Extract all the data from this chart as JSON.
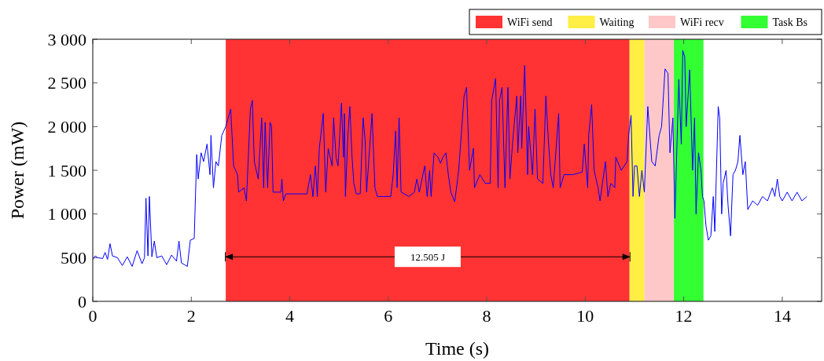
{
  "chart_data": {
    "type": "line",
    "xlabel": "Time (s)",
    "ylabel": "Power (mW)",
    "xlim": [
      0,
      14.8
    ],
    "ylim": [
      0,
      3000
    ],
    "xticks": [
      0,
      2,
      4,
      6,
      8,
      10,
      12,
      14
    ],
    "yticks": [
      0,
      500,
      {
        "value": 1000,
        "label": "1 000"
      },
      {
        "value": 1500,
        "label": "1 500"
      },
      {
        "value": 2000,
        "label": "2 000"
      },
      {
        "value": 2500,
        "label": "2 500"
      },
      {
        "value": 3000,
        "label": "3 000"
      }
    ],
    "grid": false,
    "legend": "top right",
    "line_style": "solid",
    "marker": "none",
    "bands": [
      {
        "axis": "x",
        "from": 2.7,
        "to": 10.9,
        "label": "WiFi send",
        "color": "#ff3333"
      },
      {
        "axis": "x",
        "from": 10.9,
        "to": 11.2,
        "label": "Waiting",
        "color": "#ffee44"
      },
      {
        "axis": "x",
        "from": 11.2,
        "to": 11.8,
        "label": "WiFi recv",
        "color": "#ffc8c8"
      },
      {
        "axis": "x",
        "from": 11.8,
        "to": 12.4,
        "label": "Task Bs",
        "color": "#33ff33"
      }
    ],
    "annotations": [
      "12.505 J"
    ],
    "series": [
      {
        "color": "#0000ff",
        "x": [
          0,
          0.05,
          0.1,
          0.2,
          0.25,
          0.3,
          0.35,
          0.4,
          0.5,
          0.6,
          0.7,
          0.8,
          0.9,
          1.0,
          1.05,
          1.08,
          1.12,
          1.15,
          1.2,
          1.25,
          1.3,
          1.4,
          1.5,
          1.6,
          1.7,
          1.75,
          1.8,
          1.92,
          1.98,
          2.06,
          2.11,
          2.14,
          2.2,
          2.25,
          2.32,
          2.38,
          2.4,
          2.45,
          2.5,
          2.55,
          2.62,
          2.7,
          2.8,
          2.86,
          2.94,
          2.96,
          3.07,
          3.12,
          3.2,
          3.24,
          3.28,
          3.36,
          3.43,
          3.47,
          3.5,
          3.55,
          3.6,
          3.63,
          3.66,
          3.82,
          3.84,
          3.87,
          3.92,
          4.1,
          4.35,
          4.42,
          4.47,
          4.52,
          4.56,
          4.6,
          4.68,
          4.73,
          4.78,
          4.86,
          4.89,
          4.94,
          4.98,
          5.05,
          5.09,
          5.11,
          5.13,
          5.18,
          5.22,
          5.26,
          5.3,
          5.35,
          5.43,
          5.49,
          5.53,
          5.56,
          5.67,
          5.73,
          5.78,
          5.9,
          6.05,
          6.1,
          6.15,
          6.18,
          6.22,
          6.26,
          6.42,
          6.53,
          6.58,
          6.63,
          6.74,
          6.79,
          6.84,
          6.87,
          6.93,
          7.01,
          7.06,
          7.11,
          7.17,
          7.22,
          7.27,
          7.35,
          7.43,
          7.54,
          7.59,
          7.65,
          7.73,
          7.75,
          7.86,
          7.97,
          8.07,
          8.1,
          8.18,
          8.23,
          8.26,
          8.31,
          8.37,
          8.43,
          8.47,
          8.53,
          8.61,
          8.63,
          8.69,
          8.71,
          8.77,
          8.8,
          8.83,
          8.85,
          8.93,
          8.98,
          9.03,
          9.14,
          9.2,
          9.25,
          9.3,
          9.35,
          9.46,
          9.49,
          9.57,
          9.75,
          9.94,
          9.98,
          10.05,
          10.07,
          10.13,
          10.18,
          10.26,
          10.3,
          10.41,
          10.46,
          10.52,
          10.6,
          10.62,
          10.73,
          10.85,
          10.88,
          10.93,
          10.97,
          11.0,
          11.05,
          11.1,
          11.15,
          11.2,
          11.27,
          11.35,
          11.42,
          11.5,
          11.55,
          11.62,
          11.68,
          11.72,
          11.78,
          11.82,
          11.9,
          11.95,
          11.98,
          12.02,
          12.05,
          12.12,
          12.18,
          12.22,
          12.25,
          12.3,
          12.35,
          12.38,
          12.41,
          12.45,
          12.5,
          12.55,
          12.6,
          12.63,
          12.7,
          12.73,
          12.77,
          12.8,
          12.86,
          12.9,
          12.95,
          13.0,
          13.05,
          13.1,
          13.14,
          13.2,
          13.25,
          13.3,
          13.4,
          13.5,
          13.6,
          13.7,
          13.8,
          13.85,
          13.9,
          13.95,
          14.0,
          14.1,
          14.2,
          14.3,
          14.4,
          14.5
        ],
        "values": [
          480,
          520,
          500,
          490,
          560,
          480,
          660,
          520,
          500,
          410,
          510,
          400,
          580,
          430,
          500,
          1180,
          520,
          1200,
          510,
          690,
          500,
          520,
          420,
          530,
          460,
          690,
          440,
          400,
          700,
          720,
          1680,
          1400,
          1700,
          1600,
          1800,
          1450,
          1900,
          1300,
          1600,
          1550,
          1900,
          2000,
          2200,
          1550,
          1450,
          1250,
          1300,
          1150,
          2200,
          2300,
          1600,
          1400,
          2100,
          1300,
          2050,
          1300,
          2050,
          2000,
          1250,
          1250,
          1400,
          1150,
          1230,
          1230,
          1230,
          1450,
          1200,
          1550,
          1200,
          1750,
          2150,
          1250,
          1750,
          1550,
          2100,
          1650,
          1550,
          2270,
          1650,
          2150,
          1200,
          1900,
          2230,
          1700,
          1350,
          1230,
          1230,
          2100,
          1850,
          1250,
          2150,
          1300,
          1200,
          1200,
          1200,
          1450,
          1950,
          1300,
          2100,
          1250,
          1200,
          1250,
          1400,
          1250,
          1550,
          1200,
          1500,
          1200,
          1700,
          1650,
          1580,
          1650,
          1700,
          1450,
          1250,
          1140,
          1500,
          2350,
          2450,
          1500,
          1750,
          1300,
          1450,
          1350,
          1350,
          2300,
          2550,
          1300,
          2300,
          2450,
          1300,
          2450,
          1400,
          1850,
          2350,
          1700,
          2350,
          1750,
          2700,
          2100,
          1450,
          2000,
          1450,
          2200,
          1400,
          1350,
          2350,
          1850,
          1450,
          1300,
          2150,
          1300,
          1450,
          1450,
          1480,
          1800,
          1300,
          1900,
          2250,
          1500,
          1300,
          1150,
          1600,
          1200,
          1350,
          1300,
          1650,
          1500,
          1600,
          1900,
          2130,
          1200,
          1550,
          1550,
          1200,
          1500,
          1250,
          2230,
          1600,
          1550,
          1900,
          2000,
          2660,
          2610,
          1700,
          2100,
          950,
          2540,
          1800,
          2870,
          2800,
          2000,
          2650,
          1500,
          2100,
          1000,
          1700,
          1500,
          1200,
          1150,
          870,
          700,
          750,
          1200,
          800,
          2230,
          2100,
          1000,
          1350,
          1500,
          1100,
          750,
          1450,
          1500,
          1600,
          1900,
          1450,
          1600,
          1050,
          1150,
          1100,
          1200,
          1150,
          1300,
          1200,
          1400,
          1200,
          1150,
          1250,
          1150,
          1250,
          1150,
          1200
        ]
      }
    ]
  }
}
